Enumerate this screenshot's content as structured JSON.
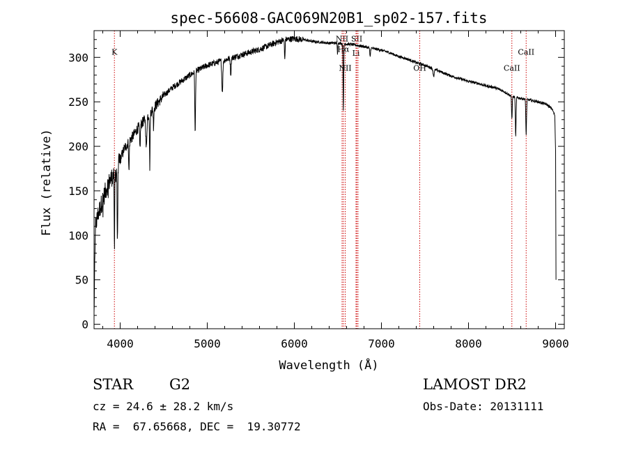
{
  "chart_data": {
    "type": "line",
    "title": "spec-56608-GAC069N20B1_sp02-157.fits",
    "xlabel": "Wavelength (Å)",
    "ylabel": "Flux (relative)",
    "xlim": [
      3700,
      9100
    ],
    "ylim": [
      -5,
      330
    ],
    "xticks": [
      4000,
      5000,
      6000,
      7000,
      8000,
      9000
    ],
    "yticks": [
      0,
      50,
      100,
      150,
      200,
      250,
      300
    ],
    "grid": false,
    "line_color": "#000000",
    "marker_color": "#cc0000",
    "continuum": [
      [
        3700,
        10
      ],
      [
        3715,
        110
      ],
      [
        3750,
        125
      ],
      [
        3800,
        140
      ],
      [
        3850,
        155
      ],
      [
        3900,
        165
      ],
      [
        3950,
        170
      ],
      [
        4000,
        185
      ],
      [
        4050,
        198
      ],
      [
        4100,
        205
      ],
      [
        4150,
        212
      ],
      [
        4200,
        220
      ],
      [
        4300,
        232
      ],
      [
        4400,
        245
      ],
      [
        4500,
        257
      ],
      [
        4600,
        266
      ],
      [
        4700,
        273
      ],
      [
        4800,
        280
      ],
      [
        4900,
        286
      ],
      [
        5000,
        291
      ],
      [
        5100,
        294
      ],
      [
        5200,
        297
      ],
      [
        5300,
        300
      ],
      [
        5400,
        303
      ],
      [
        5500,
        306
      ],
      [
        5600,
        309
      ],
      [
        5700,
        313
      ],
      [
        5800,
        317
      ],
      [
        5900,
        320
      ],
      [
        6000,
        321
      ],
      [
        6100,
        320
      ],
      [
        6200,
        318
      ],
      [
        6300,
        317
      ],
      [
        6400,
        316
      ],
      [
        6500,
        316
      ],
      [
        6600,
        315
      ],
      [
        6700,
        314
      ],
      [
        6800,
        312
      ],
      [
        6900,
        310
      ],
      [
        7000,
        308
      ],
      [
        7100,
        305
      ],
      [
        7200,
        301
      ],
      [
        7300,
        298
      ],
      [
        7400,
        294
      ],
      [
        7500,
        291
      ],
      [
        7600,
        287
      ],
      [
        7700,
        283
      ],
      [
        7800,
        279
      ],
      [
        7900,
        276
      ],
      [
        8000,
        273
      ],
      [
        8100,
        271
      ],
      [
        8200,
        268
      ],
      [
        8300,
        266
      ],
      [
        8400,
        262
      ],
      [
        8500,
        256
      ],
      [
        8600,
        254
      ],
      [
        8700,
        252
      ],
      [
        8800,
        250
      ],
      [
        8900,
        247
      ],
      [
        8960,
        242
      ],
      [
        8990,
        235
      ],
      [
        9000,
        195
      ],
      [
        9005,
        50
      ]
    ],
    "absorption": [
      [
        3934,
        95,
        4
      ],
      [
        3968,
        90,
        4
      ],
      [
        4101,
        35,
        5
      ],
      [
        4227,
        25,
        6
      ],
      [
        4300,
        35,
        8
      ],
      [
        4340,
        60,
        5
      ],
      [
        4383,
        20,
        5
      ],
      [
        4861,
        70,
        6
      ],
      [
        5173,
        35,
        8
      ],
      [
        5270,
        18,
        6
      ],
      [
        5890,
        22,
        5
      ],
      [
        6495,
        12,
        4
      ],
      [
        6563,
        75,
        5
      ],
      [
        6870,
        10,
        6
      ],
      [
        7600,
        8,
        10
      ],
      [
        8498,
        25,
        6
      ],
      [
        8542,
        45,
        6
      ],
      [
        8662,
        40,
        6
      ]
    ],
    "line_markers": [
      {
        "wavelength": 3933.7,
        "label": "K",
        "label_flux": 303
      },
      {
        "wavelength": 6548,
        "label": "NII",
        "label_flux": 318
      },
      {
        "wavelength": 6584,
        "label": "NII",
        "label_flux": 285
      },
      {
        "wavelength": 6563,
        "label": "Hα",
        "label_flux": 306
      },
      {
        "wavelength": 6708,
        "label": "Li",
        "label_flux": 302
      },
      {
        "wavelength": 6717,
        "label": "SII",
        "label_flux": 318
      },
      {
        "wavelength": 6731,
        "label": "",
        "label_flux": 318
      },
      {
        "wavelength": 7440,
        "label": "OH",
        "label_flux": 285
      },
      {
        "wavelength": 8498,
        "label": "CaII",
        "label_flux": 285
      },
      {
        "wavelength": 8662,
        "label": "CaII",
        "label_flux": 303
      }
    ]
  },
  "info": {
    "object_class": "STAR",
    "subclass": "G2",
    "survey": "LAMOST DR2",
    "cz": "cz = 24.6 ± 28.2 km/s",
    "obs_date": "Obs-Date: 20131111",
    "coords": "RA =  67.65668, DEC =  19.30772"
  }
}
